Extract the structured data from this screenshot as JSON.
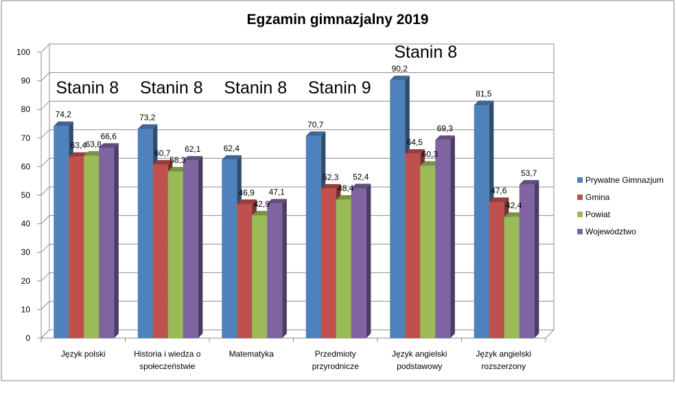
{
  "chart_data": {
    "type": "bar",
    "title": "Egzamin gimnazjalny 2019",
    "xlabel": "",
    "ylabel": "",
    "ylim": [
      0,
      100
    ],
    "yticks": [
      0,
      10,
      20,
      30,
      40,
      50,
      60,
      70,
      80,
      90,
      100
    ],
    "grid": true,
    "legend_position": "right",
    "categories": [
      [
        "Język polski"
      ],
      [
        "Historia i wiedza o",
        "społeczeństwie"
      ],
      [
        "Matematyka"
      ],
      [
        "Przedmioty",
        "przyrodnicze"
      ],
      [
        "Język angielski",
        "podstawowy"
      ],
      [
        "Język angielski",
        "rozszerzony"
      ]
    ],
    "series": [
      {
        "name": "Prywatne Gimnazjum",
        "color": "#4f81bd",
        "values": [
          74.2,
          73.2,
          62.4,
          70.7,
          90.2,
          81.5
        ]
      },
      {
        "name": "Gmina",
        "color": "#c0504d",
        "values": [
          63.4,
          60.7,
          46.9,
          52.3,
          64.5,
          47.6
        ]
      },
      {
        "name": "Powiat",
        "color": "#9bbb59",
        "values": [
          63.8,
          58.3,
          42.9,
          48.4,
          60.3,
          42.4
        ]
      },
      {
        "name": "Województwo",
        "color": "#8064a2",
        "values": [
          66.6,
          62.1,
          47.1,
          52.4,
          69.3,
          53.7
        ]
      }
    ],
    "annotations": [
      "Stanin 8",
      "Stanin 8",
      "Stanin 8",
      "Stanin 9",
      "Stanin 8",
      ""
    ]
  }
}
